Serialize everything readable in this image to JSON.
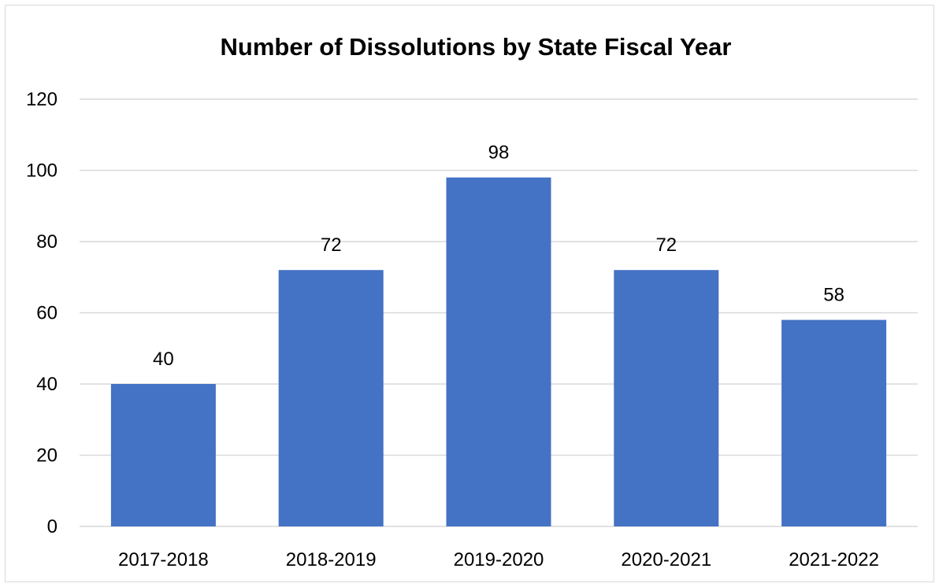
{
  "chart_data": {
    "type": "bar",
    "title": "Number of Dissolutions by State Fiscal Year",
    "categories": [
      "2017-2018",
      "2018-2019",
      "2019-2020",
      "2020-2021",
      "2021-2022"
    ],
    "values": [
      40,
      72,
      98,
      72,
      58
    ],
    "xlabel": "",
    "ylabel": "",
    "ylim": [
      0,
      120
    ],
    "yticks": [
      "0",
      "20",
      "40",
      "60",
      "80",
      "100",
      "120"
    ],
    "data_labels": [
      "40",
      "72",
      "98",
      "72",
      "58"
    ],
    "grid": true,
    "legend": "none",
    "bar_color": "#4472C4",
    "grid_color": "#D9D9D9"
  }
}
